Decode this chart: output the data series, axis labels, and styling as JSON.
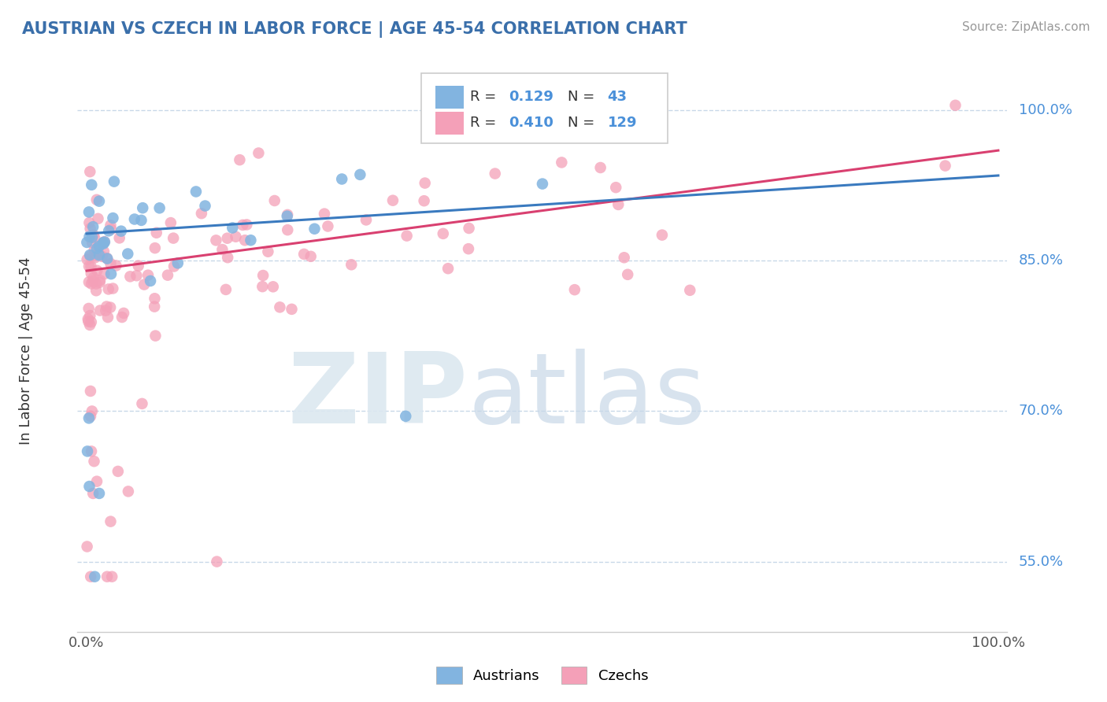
{
  "title": "AUSTRIAN VS CZECH IN LABOR FORCE | AGE 45-54 CORRELATION CHART",
  "source": "Source: ZipAtlas.com",
  "ylabel": "In Labor Force | Age 45-54",
  "legend_austrians": "Austrians",
  "legend_czechs": "Czechs",
  "r_austrians": 0.129,
  "n_austrians": 43,
  "r_czechs": 0.41,
  "n_czechs": 129,
  "color_austrians": "#82b4e0",
  "color_czechs": "#f4a0b8",
  "color_trendline_austrians": "#3a7abf",
  "color_trendline_czechs": "#d94070",
  "title_color": "#3a6faa",
  "background_color": "#ffffff",
  "ytick_vals": [
    0.55,
    0.7,
    0.85,
    1.0
  ],
  "ytick_labels": [
    "55.0%",
    "70.0%",
    "85.0%",
    "100.0%"
  ],
  "ytick_color": "#4a90d9",
  "gridline_color": "#c8d8e8",
  "xmin": 0.0,
  "xmax": 1.0,
  "ymin": 0.48,
  "ymax": 1.04,
  "aus_trend_x0": 0.0,
  "aus_trend_y0": 0.877,
  "aus_trend_x1": 1.0,
  "aus_trend_y1": 0.935,
  "cze_trend_x0": 0.0,
  "cze_trend_y0": 0.84,
  "cze_trend_x1": 1.0,
  "cze_trend_y1": 0.96
}
